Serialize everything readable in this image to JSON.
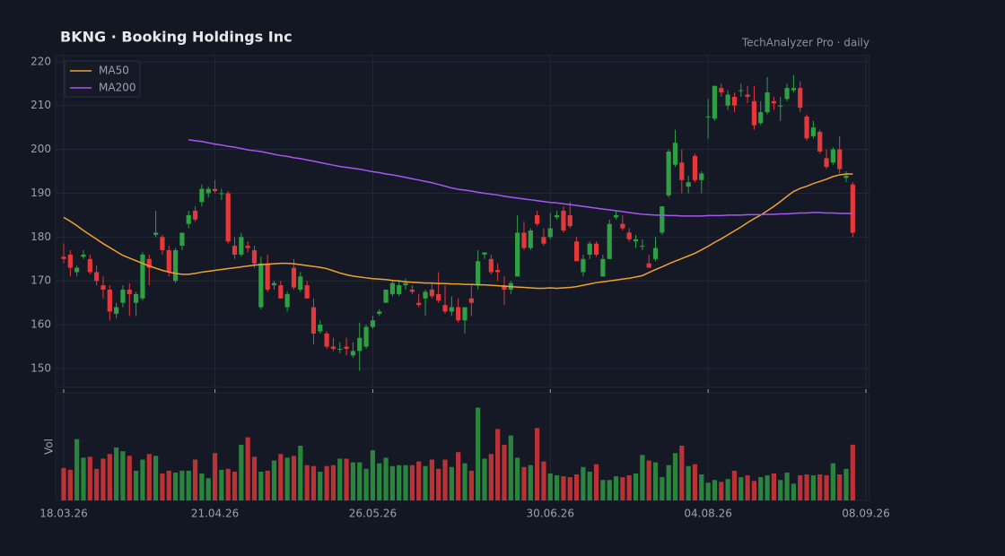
{
  "chart_data": {
    "type": "candlestick",
    "title": "BKNG  ·  Booking Holdings Inc",
    "subtitle": "TechAnalyzer Pro · daily",
    "up_color": "#2ea043",
    "down_color": "#e5383b",
    "grid": true,
    "legend": "upper-left",
    "categories": [
      "18.03.26",
      null,
      null,
      null,
      null,
      null,
      null,
      null,
      null,
      null,
      null,
      null,
      null,
      null,
      null,
      null,
      null,
      null,
      null,
      null,
      null,
      null,
      null,
      "21.04.26",
      null,
      null,
      null,
      null,
      null,
      null,
      null,
      null,
      null,
      null,
      null,
      null,
      null,
      null,
      null,
      null,
      null,
      null,
      null,
      null,
      null,
      null,
      null,
      "26.05.26",
      null,
      null,
      null,
      null,
      null,
      null,
      null,
      null,
      null,
      null,
      null,
      null,
      null,
      null,
      null,
      null,
      null,
      null,
      null,
      null,
      null,
      null,
      null,
      null,
      null,
      null,
      "30.06.26",
      null,
      null,
      null,
      null,
      null,
      null,
      null,
      null,
      null,
      null,
      null,
      null,
      null,
      null,
      null,
      null,
      null,
      null,
      null,
      null,
      null,
      null,
      null,
      "04.08.26",
      null,
      null,
      null,
      null,
      null,
      null,
      null,
      null,
      null,
      null,
      null,
      null,
      null,
      null,
      null,
      null,
      null,
      null,
      null,
      null,
      null,
      null,
      null,
      "08.09.26"
    ],
    "ylim": [
      145.7,
      221.4
    ],
    "yticks": [
      150,
      160,
      170,
      180,
      190,
      200,
      210,
      220
    ],
    "ohlc": [
      [
        175.5,
        178.5,
        174,
        175
      ],
      [
        176,
        177,
        171,
        173
      ],
      [
        172,
        173.5,
        171,
        173
      ],
      [
        175.5,
        177,
        175,
        176
      ],
      [
        175,
        176,
        171.5,
        172
      ],
      [
        172,
        173.5,
        169,
        170
      ],
      [
        169,
        171,
        166,
        168
      ],
      [
        168,
        169,
        161,
        163
      ],
      [
        162.5,
        165,
        161.5,
        164
      ],
      [
        165,
        169,
        164,
        168
      ],
      [
        168,
        169.5,
        162,
        167
      ],
      [
        165,
        167.5,
        162,
        167
      ],
      [
        166,
        176.5,
        165.5,
        176
      ],
      [
        175,
        176,
        169,
        173
      ],
      [
        180.5,
        186,
        180,
        181
      ],
      [
        180,
        180.5,
        176,
        177
      ],
      [
        177,
        178,
        171,
        172
      ],
      [
        170,
        177.5,
        169.5,
        177
      ],
      [
        178,
        181,
        177,
        181
      ],
      [
        183,
        186,
        182,
        185
      ],
      [
        186,
        187,
        183.5,
        184
      ],
      [
        188,
        192,
        187,
        191
      ],
      [
        190,
        191.5,
        189,
        191
      ],
      [
        191,
        193,
        190,
        190.5
      ],
      [
        190,
        191,
        188.5,
        190
      ],
      [
        190,
        190.5,
        178.5,
        179
      ],
      [
        178,
        180,
        175,
        176
      ],
      [
        176,
        181,
        175.5,
        180
      ],
      [
        178,
        179,
        176.5,
        177.5
      ],
      [
        177,
        178,
        173,
        174
      ],
      [
        164,
        175.5,
        163.5,
        174
      ],
      [
        174,
        176,
        167.5,
        168
      ],
      [
        169,
        170,
        168,
        169.5
      ],
      [
        169,
        170,
        166,
        166
      ],
      [
        164,
        167.5,
        163,
        167
      ],
      [
        173,
        175,
        168,
        168.5
      ],
      [
        168,
        172,
        167.5,
        171
      ],
      [
        169,
        170,
        166,
        166
      ],
      [
        164,
        166,
        155.5,
        158
      ],
      [
        158.5,
        161,
        158,
        160
      ],
      [
        158,
        158.5,
        154.5,
        155
      ],
      [
        155,
        157,
        154,
        154.5
      ],
      [
        154.5,
        156,
        153.5,
        154.5
      ],
      [
        155,
        157,
        153,
        154.5
      ],
      [
        153,
        156,
        152.5,
        154
      ],
      [
        154,
        160.5,
        149.5,
        157
      ],
      [
        155,
        160,
        154.5,
        159.5
      ],
      [
        159.5,
        162,
        159,
        161
      ],
      [
        162.5,
        163.5,
        162,
        163
      ],
      [
        165,
        168,
        165,
        168
      ],
      [
        167,
        170,
        166.5,
        169.5
      ],
      [
        167,
        170,
        166.5,
        169
      ],
      [
        169,
        170.5,
        168,
        169.5
      ],
      [
        168,
        169,
        167,
        167.5
      ],
      [
        165,
        167,
        164,
        164.5
      ],
      [
        166,
        168,
        162,
        167.5
      ],
      [
        168,
        169.5,
        166,
        166.5
      ],
      [
        167,
        172,
        165,
        165.5
      ],
      [
        164.5,
        169,
        162.5,
        163
      ],
      [
        163,
        166.5,
        162,
        164
      ],
      [
        164,
        166,
        160.5,
        161
      ],
      [
        161,
        163.5,
        158,
        164
      ],
      [
        166,
        169,
        162,
        165
      ],
      [
        169,
        177,
        168,
        174.5
      ],
      [
        176,
        176.5,
        175,
        176.5
      ],
      [
        175,
        176,
        171.5,
        172
      ],
      [
        172.5,
        174,
        170,
        172
      ],
      [
        169,
        171,
        164.5,
        168
      ],
      [
        168,
        170,
        167,
        169.5
      ],
      [
        171,
        185,
        171,
        181
      ],
      [
        181,
        183.5,
        177,
        177.5
      ],
      [
        177.5,
        182,
        177,
        181.5
      ],
      [
        185,
        186,
        182.5,
        183
      ],
      [
        180,
        182,
        178,
        178.5
      ],
      [
        180,
        185.5,
        179.5,
        182
      ],
      [
        184.5,
        186,
        184,
        185
      ],
      [
        186,
        187,
        181,
        181.5
      ],
      [
        185,
        188,
        182,
        182.5
      ],
      [
        179,
        180,
        174.5,
        174.5
      ],
      [
        172,
        176,
        171,
        175
      ],
      [
        176,
        179,
        175,
        178.5
      ],
      [
        178.5,
        179,
        175.5,
        176
      ],
      [
        171,
        176,
        171,
        175
      ],
      [
        175,
        184,
        175,
        183
      ],
      [
        184.5,
        186,
        184,
        185
      ],
      [
        183,
        185,
        181.5,
        182
      ],
      [
        181,
        182,
        179,
        179.5
      ],
      [
        179,
        180.5,
        177.5,
        179.5
      ],
      [
        178,
        179.5,
        177,
        178
      ],
      [
        174,
        176,
        173,
        173
      ],
      [
        175,
        180,
        174.5,
        177.5
      ],
      [
        181,
        187,
        180.5,
        187
      ],
      [
        189.5,
        200,
        189,
        199.5
      ],
      [
        196.5,
        204.5,
        196,
        201.5
      ],
      [
        197,
        200,
        190,
        193
      ],
      [
        191.5,
        194,
        190,
        192.5
      ],
      [
        198.5,
        199,
        192.5,
        193
      ],
      [
        193,
        195,
        190,
        194.5
      ],
      [
        207.5,
        211.5,
        202.5,
        207.5
      ],
      [
        207,
        214.5,
        206.5,
        214.5
      ],
      [
        214,
        215,
        212,
        213
      ],
      [
        210,
        213.5,
        209,
        212.5
      ],
      [
        212,
        213,
        208.5,
        210
      ],
      [
        213.5,
        215,
        212,
        213.5
      ],
      [
        212.5,
        214.5,
        210.5,
        212
      ],
      [
        211,
        214.5,
        204.5,
        205.5
      ],
      [
        206,
        211,
        205.5,
        208.5
      ],
      [
        208.5,
        216.5,
        208,
        213
      ],
      [
        211,
        212,
        209,
        210.5
      ],
      [
        210,
        212,
        206.5,
        210
      ],
      [
        211.5,
        215,
        211,
        214
      ],
      [
        213.5,
        217,
        213,
        214
      ],
      [
        214,
        215.5,
        208.5,
        209.5
      ],
      [
        207.5,
        208,
        202,
        202.5
      ],
      [
        203,
        206.5,
        202.5,
        205
      ],
      [
        204,
        204.5,
        199,
        199.5
      ],
      [
        198,
        200,
        195.5,
        196
      ],
      [
        197,
        200.5,
        196.5,
        200
      ],
      [
        200,
        203,
        194.5,
        195.5
      ],
      [
        193.5,
        195,
        192.5,
        194
      ],
      [
        192,
        192.5,
        180,
        181
      ]
    ],
    "lines": [
      {
        "name": "MA50",
        "color": "#f0a030",
        "values": [
          184.5,
          183.6,
          182.6,
          181.5,
          180.5,
          179.5,
          178.5,
          177.6,
          176.7,
          175.8,
          175.2,
          174.6,
          174,
          173.4,
          172.9,
          172.4,
          172,
          171.7,
          171.5,
          171.5,
          171.7,
          172,
          172.2,
          172.4,
          172.6,
          172.8,
          173,
          173.2,
          173.4,
          173.6,
          173.7,
          173.8,
          173.9,
          174,
          174,
          173.9,
          173.7,
          173.5,
          173.3,
          173.1,
          172.8,
          172.3,
          171.8,
          171.4,
          171.1,
          170.9,
          170.7,
          170.5,
          170.4,
          170.3,
          170.1,
          170,
          169.8,
          169.7,
          169.6,
          169.5,
          169.5,
          169.4,
          169.4,
          169.3,
          169.3,
          169.2,
          169.2,
          169.1,
          169.1,
          169,
          168.9,
          168.8,
          168.7,
          168.6,
          168.5,
          168.4,
          168.3,
          168.3,
          168.4,
          168.3,
          168.4,
          168.5,
          168.7,
          169,
          169.3,
          169.6,
          169.8,
          170,
          170.2,
          170.4,
          170.6,
          170.9,
          171.2,
          171.9,
          172.6,
          173.2,
          173.9,
          174.5,
          175.1,
          175.7,
          176.3,
          177.1,
          177.9,
          178.8,
          179.6,
          180.5,
          181.4,
          182.3,
          183.3,
          184.2,
          185,
          186,
          187,
          188.1,
          189.3,
          190.4,
          191.1,
          191.6,
          192.2,
          192.7,
          193.2,
          193.8,
          194.2,
          194.4,
          194.4
        ]
      },
      {
        "name": "MA200",
        "color": "#a855f7",
        "values": [
          null,
          null,
          null,
          null,
          null,
          null,
          null,
          null,
          null,
          null,
          null,
          null,
          null,
          null,
          null,
          null,
          null,
          null,
          null,
          202.2,
          202,
          201.8,
          201.5,
          201.2,
          201,
          200.7,
          200.5,
          200.2,
          199.9,
          199.7,
          199.5,
          199.2,
          198.9,
          198.6,
          198.4,
          198.1,
          197.9,
          197.6,
          197.3,
          197,
          196.7,
          196.4,
          196.1,
          195.9,
          195.7,
          195.5,
          195.2,
          194.9,
          194.7,
          194.4,
          194.2,
          193.9,
          193.6,
          193.3,
          193,
          192.7,
          192.4,
          192,
          191.6,
          191.2,
          190.9,
          190.7,
          190.5,
          190.2,
          190,
          189.8,
          189.6,
          189.3,
          189.1,
          188.9,
          188.7,
          188.5,
          188.3,
          188.1,
          187.9,
          187.8,
          187.6,
          187.4,
          187.2,
          187,
          186.8,
          186.6,
          186.4,
          186.2,
          186,
          185.8,
          185.6,
          185.4,
          185.2,
          185.1,
          185,
          185,
          184.9,
          184.9,
          184.8,
          184.8,
          184.8,
          184.8,
          184.9,
          184.9,
          184.9,
          185,
          185,
          185,
          185.1,
          185.1,
          185.1,
          185.2,
          185.2,
          185.3,
          185.3,
          185.4,
          185.5,
          185.5,
          185.6,
          185.6,
          185.5,
          185.5,
          185.4,
          185.4,
          185.4
        ]
      }
    ],
    "volume": {
      "label": "Vol",
      "ylim": [
        0,
        116
      ],
      "values": [
        35,
        33,
        66,
        46,
        47,
        34,
        45,
        50,
        57,
        53,
        48,
        32,
        44,
        50,
        48,
        29,
        32,
        30,
        32,
        32,
        44,
        29,
        24,
        51,
        33,
        34,
        31,
        60,
        68,
        47,
        31,
        32,
        43,
        50,
        46,
        48,
        59,
        38,
        37,
        31,
        37,
        38,
        45,
        45,
        41,
        41,
        34,
        54,
        40,
        46,
        37,
        38,
        38,
        38,
        42,
        37,
        44,
        34,
        44,
        36,
        52,
        40,
        32,
        100,
        45,
        50,
        77,
        60,
        70,
        46,
        36,
        38,
        78,
        42,
        29,
        27,
        26,
        25,
        28,
        36,
        31,
        39,
        22,
        22,
        26,
        25,
        27,
        29,
        49,
        43,
        41,
        25,
        38,
        51,
        59,
        37,
        39,
        28,
        19,
        22,
        20,
        23,
        32,
        25,
        27,
        21,
        25,
        27,
        29,
        22,
        30,
        18,
        27,
        28,
        27,
        28,
        27,
        40,
        28,
        34,
        60
      ]
    }
  }
}
